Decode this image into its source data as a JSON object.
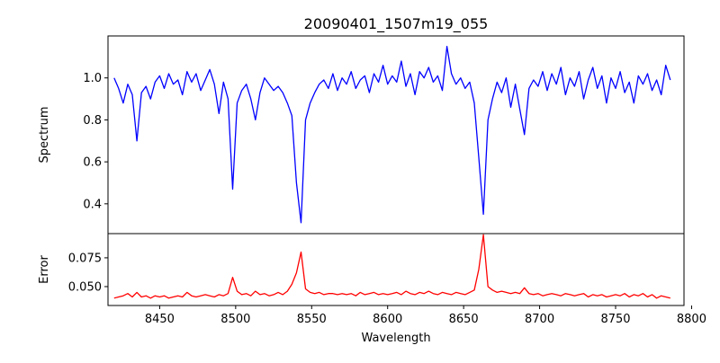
{
  "chart_data": [
    {
      "type": "line",
      "title": "20090401_1507m19_055",
      "xlabel": "",
      "ylabel": "Spectrum",
      "xlim": [
        8416,
        8795
      ],
      "ylim": [
        0.258,
        1.2
      ],
      "yticks": [
        "0.4",
        "0.6",
        "0.8",
        "1.0"
      ],
      "grid": false,
      "series": [
        {
          "name": "Spectrum",
          "color": "#0000ff",
          "x_start": 8420,
          "x_step": 3,
          "values": [
            1.0,
            0.95,
            0.88,
            0.97,
            0.92,
            0.7,
            0.93,
            0.96,
            0.9,
            0.98,
            1.01,
            0.95,
            1.02,
            0.97,
            0.99,
            0.92,
            1.03,
            0.98,
            1.02,
            0.94,
            0.99,
            1.04,
            0.97,
            0.83,
            0.98,
            0.9,
            0.47,
            0.88,
            0.94,
            0.97,
            0.9,
            0.8,
            0.93,
            1.0,
            0.97,
            0.94,
            0.96,
            0.93,
            0.88,
            0.82,
            0.5,
            0.31,
            0.8,
            0.88,
            0.93,
            0.97,
            0.99,
            0.95,
            1.02,
            0.94,
            1.0,
            0.97,
            1.03,
            0.95,
            0.99,
            1.01,
            0.93,
            1.02,
            0.98,
            1.06,
            0.97,
            1.01,
            0.98,
            1.08,
            0.96,
            1.02,
            0.92,
            1.03,
            1.0,
            1.05,
            0.98,
            1.01,
            0.94,
            1.15,
            1.02,
            0.97,
            1.0,
            0.95,
            0.98,
            0.88,
            0.62,
            0.35,
            0.8,
            0.9,
            0.98,
            0.93,
            1.0,
            0.86,
            0.97,
            0.85,
            0.73,
            0.95,
            0.99,
            0.96,
            1.03,
            0.94,
            1.02,
            0.97,
            1.05,
            0.92,
            1.0,
            0.96,
            1.03,
            0.9,
            0.99,
            1.05,
            0.95,
            1.01,
            0.88,
            1.0,
            0.95,
            1.03,
            0.93,
            0.98,
            0.88,
            1.01,
            0.97,
            1.02,
            0.94,
            0.99,
            0.92,
            1.06,
            0.99
          ]
        }
      ]
    },
    {
      "type": "line",
      "title": "",
      "xlabel": "Wavelength",
      "ylabel": "Error",
      "xlim": [
        8416,
        8795
      ],
      "ylim": [
        0.0336,
        0.096
      ],
      "xticks": [
        "8450",
        "8500",
        "8550",
        "8600",
        "8650",
        "8700",
        "8750",
        "8800"
      ],
      "yticks": [
        "0.050",
        "0.075"
      ],
      "grid": false,
      "series": [
        {
          "name": "Error",
          "color": "#ff0000",
          "x_start": 8420,
          "x_step": 3,
          "values": [
            0.04,
            0.041,
            0.042,
            0.044,
            0.041,
            0.045,
            0.041,
            0.042,
            0.04,
            0.042,
            0.041,
            0.042,
            0.04,
            0.041,
            0.042,
            0.041,
            0.045,
            0.042,
            0.041,
            0.042,
            0.043,
            0.042,
            0.041,
            0.043,
            0.042,
            0.044,
            0.058,
            0.046,
            0.043,
            0.044,
            0.042,
            0.046,
            0.043,
            0.044,
            0.042,
            0.043,
            0.045,
            0.043,
            0.046,
            0.052,
            0.062,
            0.08,
            0.048,
            0.045,
            0.044,
            0.045,
            0.043,
            0.044,
            0.044,
            0.043,
            0.044,
            0.043,
            0.044,
            0.042,
            0.045,
            0.043,
            0.044,
            0.045,
            0.043,
            0.044,
            0.043,
            0.044,
            0.045,
            0.043,
            0.046,
            0.044,
            0.043,
            0.045,
            0.044,
            0.046,
            0.044,
            0.043,
            0.045,
            0.044,
            0.043,
            0.045,
            0.044,
            0.043,
            0.045,
            0.047,
            0.065,
            0.095,
            0.05,
            0.047,
            0.045,
            0.046,
            0.045,
            0.044,
            0.045,
            0.044,
            0.049,
            0.044,
            0.043,
            0.044,
            0.042,
            0.043,
            0.044,
            0.043,
            0.042,
            0.044,
            0.043,
            0.042,
            0.043,
            0.044,
            0.041,
            0.043,
            0.042,
            0.043,
            0.041,
            0.042,
            0.043,
            0.042,
            0.044,
            0.041,
            0.043,
            0.042,
            0.044,
            0.041,
            0.043,
            0.04,
            0.042,
            0.041,
            0.04
          ]
        }
      ]
    }
  ]
}
